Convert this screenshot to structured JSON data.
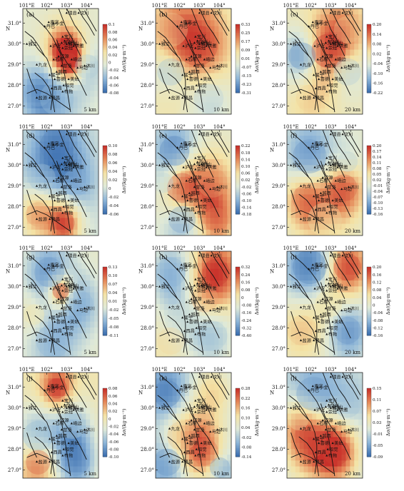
{
  "chart_data": {
    "type": "heatmap",
    "colormap": [
      "#3b6fb0",
      "#8fb6d8",
      "#dfe9d8",
      "#f4e3a6",
      "#e58a5a",
      "#c8302a"
    ],
    "y_unit_label": "Δσ/(kg·m⁻³)",
    "lon_ticks": [
      "101°E",
      "102°",
      "103°",
      "104°"
    ],
    "lat_ticks": [
      "31.0°",
      "30.0°",
      "29.0°",
      "28.0°",
      "27.0°"
    ],
    "lat_north": "N",
    "place_labels": [
      {
        "name": "汶川",
        "lon": 103.6,
        "lat": 31.5
      },
      {
        "name": "理县",
        "lon": 103.0,
        "lat": 31.5
      },
      {
        "name": "康定",
        "lon": 102.1,
        "lat": 31.05
      },
      {
        "name": "丹巴",
        "lon": 101.9,
        "lat": 30.85
      },
      {
        "name": "小金",
        "lon": 102.35,
        "lat": 31.0
      },
      {
        "name": "宝兴",
        "lon": 102.8,
        "lat": 30.35
      },
      {
        "name": "天全",
        "lon": 102.75,
        "lat": 30.05
      },
      {
        "name": "芦山",
        "lon": 102.9,
        "lat": 30.15
      },
      {
        "name": "雅安",
        "lon": 103.0,
        "lat": 30.0
      },
      {
        "name": "名山",
        "lon": 103.1,
        "lat": 30.05
      },
      {
        "name": "雅江",
        "lon": 101.0,
        "lat": 30.0
      },
      {
        "name": "泸定",
        "lon": 102.2,
        "lat": 29.9
      },
      {
        "name": "荥经",
        "lon": 102.8,
        "lat": 29.8
      },
      {
        "name": "洪雅",
        "lon": 103.35,
        "lat": 29.9
      },
      {
        "name": "汉源",
        "lon": 102.6,
        "lat": 29.4
      },
      {
        "name": "石棉",
        "lon": 102.35,
        "lat": 29.25
      },
      {
        "name": "峨边",
        "lon": 103.25,
        "lat": 29.25
      },
      {
        "name": "九龙",
        "lon": 101.5,
        "lat": 29.0
      },
      {
        "name": "甘洛",
        "lon": 102.75,
        "lat": 28.95
      },
      {
        "name": "沐川",
        "lon": 103.9,
        "lat": 28.95
      },
      {
        "name": "马边",
        "lon": 103.55,
        "lat": 28.85
      },
      {
        "name": "美姑",
        "lon": 103.1,
        "lat": 28.3
      },
      {
        "name": "越西",
        "lon": 102.5,
        "lat": 28.65
      },
      {
        "name": "冕宁",
        "lon": 102.15,
        "lat": 28.5
      },
      {
        "name": "喜德",
        "lon": 102.4,
        "lat": 28.3
      },
      {
        "name": "昭觉",
        "lon": 102.85,
        "lat": 28.0
      },
      {
        "name": "西昌",
        "lon": 102.25,
        "lat": 27.85
      },
      {
        "name": "布拖",
        "lon": 102.8,
        "lat": 27.7
      },
      {
        "name": "盐源",
        "lon": 101.5,
        "lat": 27.4
      },
      {
        "name": "德昌",
        "lon": 102.15,
        "lat": 27.4
      }
    ],
    "panels": [
      {
        "id": "(a)",
        "scale": "5 km",
        "ticks": [
          "0.1",
          "0.08",
          "0.06",
          "0.04",
          "0.02",
          "0",
          "-0.02",
          "-0.04",
          "-0.06",
          "-0.08"
        ],
        "vmin": -0.08,
        "vmax": 0.1,
        "blobs": [
          [
            0.55,
            0.4,
            0.18,
            0.1
          ],
          [
            0.62,
            0.5,
            0.12,
            0.09
          ],
          [
            0.2,
            0.8,
            0.2,
            -0.05
          ],
          [
            0.85,
            0.55,
            0.18,
            -0.03
          ],
          [
            0.45,
            0.85,
            0.25,
            -0.04
          ]
        ]
      },
      {
        "id": "(b)",
        "scale": "10 km",
        "ticks": [
          "0.33",
          "0.25",
          "0.17",
          "0.09",
          "0.01",
          "-0.07",
          "-0.15",
          "-0.23",
          "-0.31"
        ],
        "vmin": -0.31,
        "vmax": 0.33,
        "blobs": [
          [
            0.55,
            0.35,
            0.3,
            0.3
          ],
          [
            0.2,
            0.2,
            0.25,
            0.12
          ],
          [
            0.2,
            0.6,
            0.2,
            -0.15
          ],
          [
            0.7,
            0.85,
            0.22,
            -0.12
          ],
          [
            0.15,
            0.9,
            0.2,
            0.05
          ]
        ]
      },
      {
        "id": "(c)",
        "scale": "20 km",
        "ticks": [
          "0.20",
          "0.14",
          "0.08",
          "0.02",
          "-0.04",
          "-0.10",
          "-0.16",
          "-0.22"
        ],
        "vmin": -0.22,
        "vmax": 0.2,
        "blobs": [
          [
            0.55,
            0.4,
            0.25,
            0.2
          ],
          [
            0.2,
            0.45,
            0.2,
            -0.18
          ],
          [
            0.8,
            0.6,
            0.2,
            -0.1
          ],
          [
            0.3,
            0.85,
            0.2,
            0.05
          ],
          [
            0.8,
            0.2,
            0.2,
            0.06
          ]
        ]
      },
      {
        "id": "(d)",
        "scale": "5 km",
        "ticks": [
          "0.10",
          "0.08",
          "0.06",
          "0.04",
          "0.02",
          "0",
          "-0.02",
          "-0.04",
          "-0.06"
        ],
        "vmin": -0.06,
        "vmax": 0.1,
        "blobs": [
          [
            0.45,
            0.15,
            0.25,
            -0.05
          ],
          [
            0.2,
            0.8,
            0.18,
            0.06
          ],
          [
            0.55,
            0.88,
            0.15,
            0.09
          ],
          [
            0.7,
            0.5,
            0.2,
            -0.03
          ],
          [
            0.25,
            0.45,
            0.2,
            -0.02
          ]
        ]
      },
      {
        "id": "(e)",
        "scale": "10 km",
        "ticks": [
          "0.22",
          "0.18",
          "0.14",
          "0.10",
          "0.06",
          "0.02",
          "-0.02",
          "-0.06",
          "-0.10",
          "-0.14",
          "-0.18"
        ],
        "vmin": -0.18,
        "vmax": 0.22,
        "blobs": [
          [
            0.25,
            0.2,
            0.22,
            -0.15
          ],
          [
            0.35,
            0.55,
            0.22,
            0.2
          ],
          [
            0.75,
            0.5,
            0.22,
            0.12
          ],
          [
            0.35,
            0.85,
            0.2,
            -0.12
          ],
          [
            0.8,
            0.85,
            0.18,
            0.15
          ],
          [
            0.1,
            0.5,
            0.15,
            -0.05
          ]
        ]
      },
      {
        "id": "(f)",
        "scale": "20 km",
        "ticks": [
          "0.20",
          "0.17",
          "0.14",
          "0.11",
          "0.08",
          "0.05",
          "0.02",
          "-0.01",
          "-0.04",
          "-0.07",
          "-0.10",
          "-0.13",
          "-0.16"
        ],
        "vmin": -0.16,
        "vmax": 0.2,
        "blobs": [
          [
            0.3,
            0.25,
            0.25,
            -0.12
          ],
          [
            0.25,
            0.65,
            0.2,
            0.15
          ],
          [
            0.75,
            0.55,
            0.2,
            0.16
          ],
          [
            0.8,
            0.3,
            0.15,
            -0.05
          ],
          [
            0.5,
            0.85,
            0.25,
            0.05
          ]
        ]
      },
      {
        "id": "(g)",
        "scale": "5 km",
        "ticks": [
          "0.13",
          "0.10",
          "0.07",
          "0.04",
          "0.01",
          "-0.02",
          "-0.05",
          "-0.08",
          "-0.11"
        ],
        "vmin": -0.11,
        "vmax": 0.13,
        "blobs": [
          [
            0.5,
            0.38,
            0.12,
            0.13
          ],
          [
            0.35,
            0.2,
            0.22,
            -0.08
          ],
          [
            0.75,
            0.5,
            0.2,
            -0.06
          ],
          [
            0.4,
            0.85,
            0.25,
            -0.06
          ],
          [
            0.15,
            0.6,
            0.15,
            0.03
          ]
        ]
      },
      {
        "id": "(h)",
        "scale": "10 km",
        "ticks": [
          "0.32",
          "0.24",
          "0.16",
          "0.08",
          "0",
          "-0.08",
          "-0.16",
          "-0.24",
          "-0.32",
          "-0.40"
        ],
        "vmin": -0.4,
        "vmax": 0.32,
        "blobs": [
          [
            0.8,
            0.2,
            0.2,
            0.3
          ],
          [
            0.2,
            0.2,
            0.22,
            -0.25
          ],
          [
            0.65,
            0.45,
            0.2,
            0.12
          ],
          [
            0.35,
            0.65,
            0.25,
            -0.15
          ],
          [
            0.75,
            0.8,
            0.22,
            -0.2
          ],
          [
            0.2,
            0.85,
            0.2,
            0.05
          ]
        ]
      },
      {
        "id": "(i)",
        "scale": "20 km",
        "ticks": [
          "0.20",
          "0.16",
          "0.12",
          "0.08",
          "0.04",
          "0",
          "-0.04",
          "-0.08",
          "-0.12",
          "-0.16"
        ],
        "vmin": -0.16,
        "vmax": 0.2,
        "blobs": [
          [
            0.8,
            0.15,
            0.2,
            0.18
          ],
          [
            0.3,
            0.15,
            0.25,
            -0.14
          ],
          [
            0.55,
            0.5,
            0.2,
            0.05
          ],
          [
            0.2,
            0.75,
            0.22,
            0.08
          ],
          [
            0.8,
            0.75,
            0.2,
            -0.12
          ]
        ]
      },
      {
        "id": "(j)",
        "scale": "5 km",
        "ticks": [
          "0.08",
          "0.06",
          "0.04",
          "0.02",
          "0",
          "-0.02",
          "-0.04",
          "-0.06",
          "-0.08",
          "-0.10"
        ],
        "vmin": -0.1,
        "vmax": 0.08,
        "blobs": [
          [
            0.45,
            0.15,
            0.15,
            0.08
          ],
          [
            0.2,
            0.6,
            0.22,
            -0.06
          ],
          [
            0.65,
            0.5,
            0.2,
            -0.05
          ],
          [
            0.2,
            0.85,
            0.18,
            0.06
          ],
          [
            0.7,
            0.85,
            0.2,
            -0.08
          ]
        ]
      },
      {
        "id": "(k)",
        "scale": "10 km",
        "ticks": [
          "0.28",
          "0.22",
          "0.16",
          "0.10",
          "0.04",
          "-0.02",
          "-0.08",
          "-0.14"
        ],
        "vmin": -0.14,
        "vmax": 0.28,
        "blobs": [
          [
            0.15,
            0.2,
            0.2,
            -0.12
          ],
          [
            0.75,
            0.2,
            0.2,
            0.12
          ],
          [
            0.35,
            0.6,
            0.22,
            0.14
          ],
          [
            0.65,
            0.75,
            0.2,
            0.22
          ],
          [
            0.15,
            0.85,
            0.2,
            -0.1
          ],
          [
            0.85,
            0.9,
            0.15,
            -0.08
          ]
        ]
      },
      {
        "id": "(l)",
        "scale": "20 km",
        "ticks": [
          "0.15",
          "0.11",
          "0.07",
          "0.03",
          "-0.01",
          "-0.05",
          "-0.09"
        ],
        "vmin": -0.09,
        "vmax": 0.15,
        "blobs": [
          [
            0.35,
            0.2,
            0.25,
            -0.06
          ],
          [
            0.3,
            0.65,
            0.25,
            0.12
          ],
          [
            0.65,
            0.75,
            0.2,
            0.14
          ],
          [
            0.8,
            0.3,
            0.2,
            -0.03
          ],
          [
            0.15,
            0.45,
            0.15,
            0.05
          ]
        ]
      }
    ]
  }
}
